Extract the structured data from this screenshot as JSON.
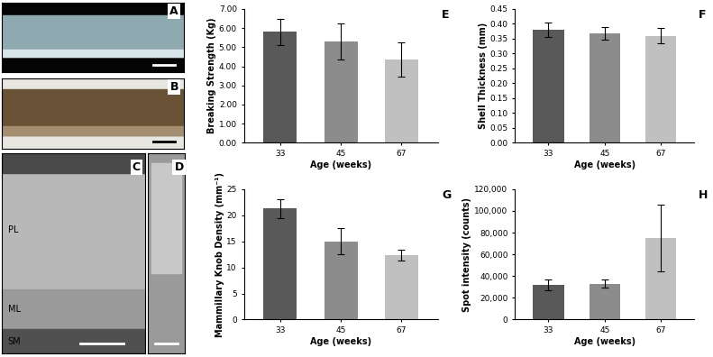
{
  "chart_data": [
    {
      "type": "bar",
      "annotations": [
        "E"
      ],
      "x_label": "Age (weeks)",
      "y_label": "Breaking Strength (Kg)",
      "categories": [
        "33",
        "45",
        "67"
      ],
      "values": [
        5.8,
        5.3,
        4.35
      ],
      "errors": [
        0.7,
        0.95,
        0.9
      ],
      "colors": [
        "#595959",
        "#8c8c8c",
        "#c0c0c0"
      ],
      "ylim": [
        0,
        7
      ],
      "yticks": [
        {
          "value": 0,
          "label": "0.00"
        },
        {
          "value": 1,
          "label": "1.00"
        },
        {
          "value": 2,
          "label": "2.00"
        },
        {
          "value": 3,
          "label": "3.00"
        },
        {
          "value": 4,
          "label": "4.00"
        },
        {
          "value": 5,
          "label": "5.00"
        },
        {
          "value": 6,
          "label": "6.00"
        },
        {
          "value": 7,
          "label": "7.00"
        }
      ]
    },
    {
      "type": "bar",
      "annotations": [
        "F"
      ],
      "x_label": "Age (weeks)",
      "y_label": "Shell Thickness (mm)",
      "categories": [
        "33",
        "45",
        "67"
      ],
      "values": [
        0.38,
        0.368,
        0.36
      ],
      "errors": [
        0.025,
        0.02,
        0.025
      ],
      "colors": [
        "#595959",
        "#8c8c8c",
        "#c0c0c0"
      ],
      "ylim": [
        0,
        0.45
      ],
      "yticks": [
        {
          "value": 0,
          "label": "0.00"
        },
        {
          "value": 0.05,
          "label": "0.05"
        },
        {
          "value": 0.1,
          "label": "0.10"
        },
        {
          "value": 0.15,
          "label": "0.15"
        },
        {
          "value": 0.2,
          "label": "0.20"
        },
        {
          "value": 0.25,
          "label": "0.25"
        },
        {
          "value": 0.3,
          "label": "0.30"
        },
        {
          "value": 0.35,
          "label": "0.35"
        },
        {
          "value": 0.4,
          "label": "0.40"
        },
        {
          "value": 0.45,
          "label": "0.45"
        }
      ]
    },
    {
      "type": "bar",
      "annotations": [
        "G"
      ],
      "x_label": "Age (weeks)",
      "y_label": "Mammillary Knob Density (mm⁻¹)",
      "categories": [
        "33",
        "45",
        "67"
      ],
      "values": [
        21.3,
        15.0,
        12.4
      ],
      "errors": [
        1.8,
        2.5,
        1.0
      ],
      "colors": [
        "#595959",
        "#8c8c8c",
        "#c0c0c0"
      ],
      "ylim": [
        0,
        25
      ],
      "yticks": [
        0,
        5,
        10,
        15,
        20,
        25
      ]
    },
    {
      "type": "bar",
      "annotations": [
        "H"
      ],
      "x_label": "Age (weeks)",
      "y_label": "Spot intensity (counts)",
      "categories": [
        "33",
        "45",
        "67"
      ],
      "values": [
        32000,
        33000,
        75000
      ],
      "errors": [
        5000,
        4000,
        31000
      ],
      "colors": [
        "#595959",
        "#8c8c8c",
        "#c0c0c0"
      ],
      "ylim": [
        0,
        120000
      ],
      "yticks": [
        {
          "value": 0,
          "label": "0"
        },
        {
          "value": 20000,
          "label": "20,000"
        },
        {
          "value": 40000,
          "label": "40,000"
        },
        {
          "value": 60000,
          "label": "60,000"
        },
        {
          "value": 80000,
          "label": "80,000"
        },
        {
          "value": 100000,
          "label": "100,000"
        },
        {
          "value": 120000,
          "label": "120,000"
        }
      ]
    }
  ],
  "image_panels": [
    {
      "label": "A"
    },
    {
      "label": "B"
    },
    {
      "label": "C",
      "annotations": [
        "PL",
        "ML",
        "SM"
      ]
    },
    {
      "label": "D"
    }
  ]
}
